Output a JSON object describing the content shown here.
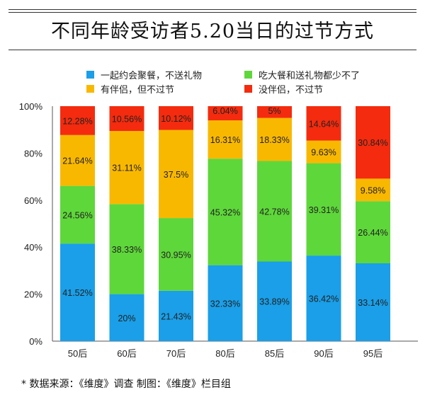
{
  "chart_data": {
    "type": "bar",
    "stacked": true,
    "title": "不同年龄受访者5.20当日的过节方式",
    "categories": [
      "50后",
      "60后",
      "70后",
      "80后",
      "85后",
      "90后",
      "95后"
    ],
    "series": [
      {
        "name": "一起约会聚餐，不送礼物",
        "color": "#1a9fe8",
        "values": [
          41.52,
          20,
          21.43,
          32.33,
          33.89,
          36.42,
          33.14
        ]
      },
      {
        "name": "吃大餐和送礼物都少不了",
        "color": "#5ed73a",
        "values": [
          24.56,
          38.33,
          30.95,
          45.32,
          42.78,
          39.31,
          26.44
        ]
      },
      {
        "name": "有伴侣，但不过节",
        "color": "#f9b800",
        "values": [
          21.64,
          31.11,
          37.5,
          16.31,
          18.33,
          9.63,
          9.58
        ]
      },
      {
        "name": "没伴侣，不过节",
        "color": "#f42b0e",
        "values": [
          12.28,
          10.56,
          10.12,
          6.04,
          5,
          14.64,
          30.84
        ]
      }
    ],
    "yticks": [
      "0%",
      "20%",
      "40%",
      "60%",
      "80%",
      "100%"
    ],
    "ylim": [
      0,
      100
    ],
    "grid": false,
    "legend_position": "top"
  },
  "footer": "*  数据来源：《维度》调查   制图：《维度》栏目组"
}
